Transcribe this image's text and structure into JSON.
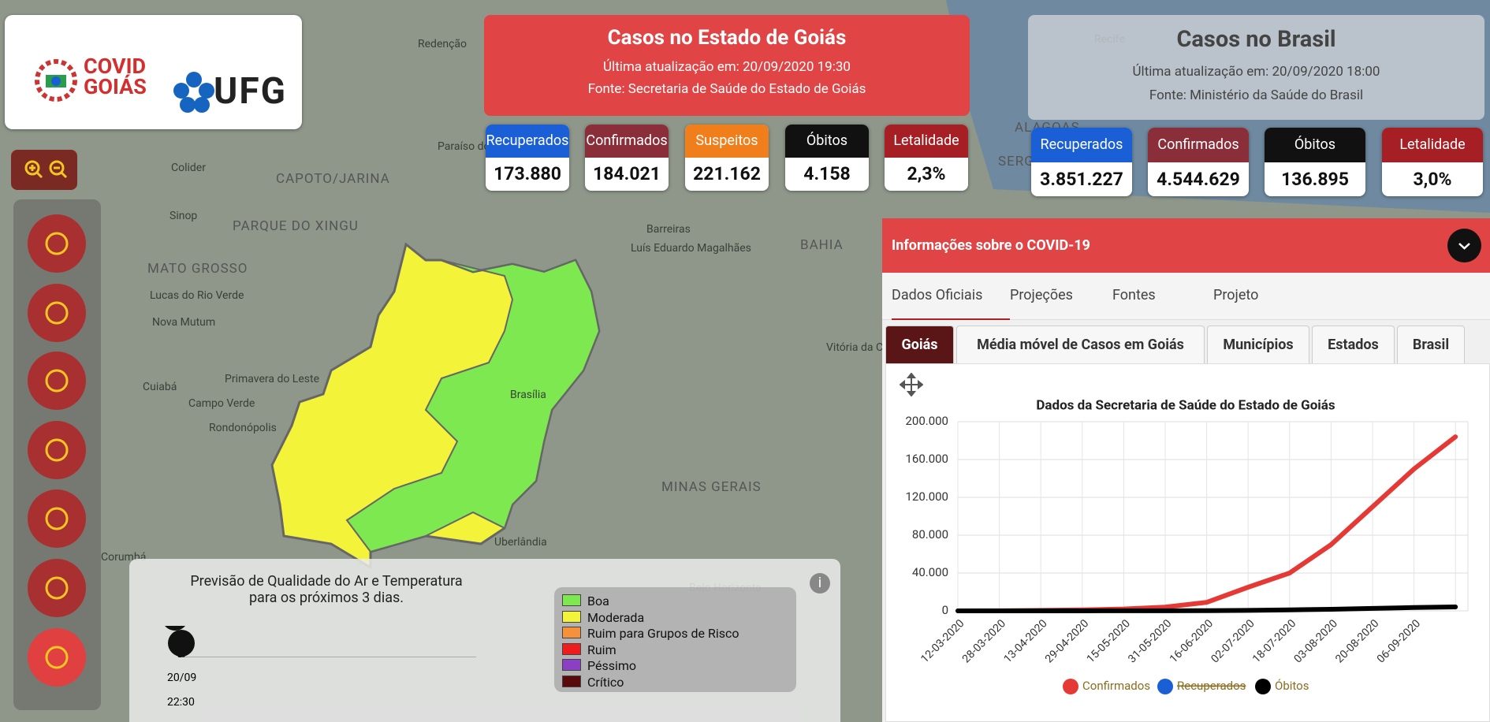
{
  "header": {
    "logo_covid": "COVID",
    "logo_goias": "GOIÁS",
    "logo_ufg": "UFG"
  },
  "goias": {
    "title": "Casos no Estado de Goiás",
    "updated": "Última atualização em: 20/09/2020 19:30",
    "source": "Fonte: Secretaria de Saúde do Estado de Goiás",
    "stats": [
      {
        "label": "Recuperados",
        "value": "173.880",
        "color": "#1a5fd6"
      },
      {
        "label": "Confirmados",
        "value": "184.021",
        "color": "#8a2f3a"
      },
      {
        "label": "Suspeitos",
        "value": "221.162",
        "color": "#f07f1b"
      },
      {
        "label": "Óbitos",
        "value": "4.158",
        "color": "#111111"
      },
      {
        "label": "Letalidade",
        "value": "2,3%",
        "color": "#a51f24"
      }
    ]
  },
  "brasil": {
    "title": "Casos no Brasil",
    "updated": "Última atualização em: 20/09/2020 18:00",
    "source": "Fonte: Ministério da Saúde do Brasil",
    "stats": [
      {
        "label": "Recuperados",
        "value": "3.851.227",
        "color": "#1a5fd6"
      },
      {
        "label": "Confirmados",
        "value": "4.544.629",
        "color": "#8a2f3a"
      },
      {
        "label": "Óbitos",
        "value": "136.895",
        "color": "#111111"
      },
      {
        "label": "Letalidade",
        "value": "3,0%",
        "color": "#a51f24"
      }
    ]
  },
  "map_labels": [
    "Redenção",
    "Colider",
    "Sinop",
    "PARQUE DO XINGU",
    "CAPOTO/JARINA",
    "MATO GROSSO",
    "Lucas do Rio Verde",
    "Nova Mutum",
    "Primavera do Leste",
    "Cuiabá",
    "Campo Verde",
    "Rondonópolis",
    "Corumbá",
    "Paraíso do Tocantins",
    "Barreiras",
    "Luís Eduardo Magalhães",
    "BAHIA",
    "Vitória da Conquista",
    "Brasília",
    "MINAS GERAIS",
    "Uberlândia",
    "Belo Horizonte",
    "Recife",
    "ALAGOAS",
    "SERGIPE"
  ],
  "air_quality": {
    "title": "Previsão de Qualidade do Ar e Temperatura para os próximos 3 dias.",
    "date": "20/09",
    "time": "22:30",
    "legend": [
      {
        "label": "Boa",
        "color": "#7de84f"
      },
      {
        "label": "Moderada",
        "color": "#f3f33a"
      },
      {
        "label": "Ruim para Grupos de Risco",
        "color": "#f5913b"
      },
      {
        "label": "Ruim",
        "color": "#ee1c1c"
      },
      {
        "label": "Péssimo",
        "color": "#8a3fc4"
      },
      {
        "label": "Crítico",
        "color": "#5a0a0a"
      }
    ]
  },
  "info_panel": {
    "title": "Informações sobre o COVID-19",
    "tabs": [
      "Dados Oficiais",
      "Projeções",
      "Fontes",
      "Projeto"
    ],
    "subtabs": [
      "Goiás",
      "Média móvel de Casos em Goiás",
      "Municípios",
      "Estados",
      "Brasil"
    ]
  },
  "chart_data": {
    "type": "line",
    "title": "Dados da Secretaria de Saúde do Estado de Goiás",
    "categories": [
      "12-03-2020",
      "28-03-2020",
      "13-04-2020",
      "29-04-2020",
      "15-05-2020",
      "31-05-2020",
      "16-06-2020",
      "02-07-2020",
      "18-07-2020",
      "03-08-2020",
      "20-08-2020",
      "06-09-2020",
      null
    ],
    "series": [
      {
        "name": "Confirmados",
        "color": "#e53935",
        "values": [
          0,
          100,
          500,
          1000,
          2000,
          4000,
          9000,
          25000,
          40000,
          70000,
          110000,
          150000,
          184021
        ]
      },
      {
        "name": "Recuperados",
        "color": "#1a5fd6",
        "hidden": true,
        "values": [
          null,
          null,
          null,
          null,
          null,
          null,
          null,
          null,
          null,
          null,
          null,
          null,
          null
        ]
      },
      {
        "name": "Óbitos",
        "color": "#000000",
        "values": [
          0,
          0,
          20,
          40,
          70,
          120,
          200,
          500,
          1000,
          1700,
          2600,
          3500,
          4158
        ]
      }
    ],
    "ylim": [
      0,
      200000
    ],
    "yticks": [
      0,
      {
        "value": 40000,
        "label": "40.000"
      },
      {
        "value": 80000,
        "label": "80.000"
      },
      {
        "value": 120000,
        "label": "120.000"
      },
      {
        "value": 160000,
        "label": "160.000"
      },
      {
        "value": 200000,
        "label": "200.000"
      }
    ],
    "grid": true
  }
}
